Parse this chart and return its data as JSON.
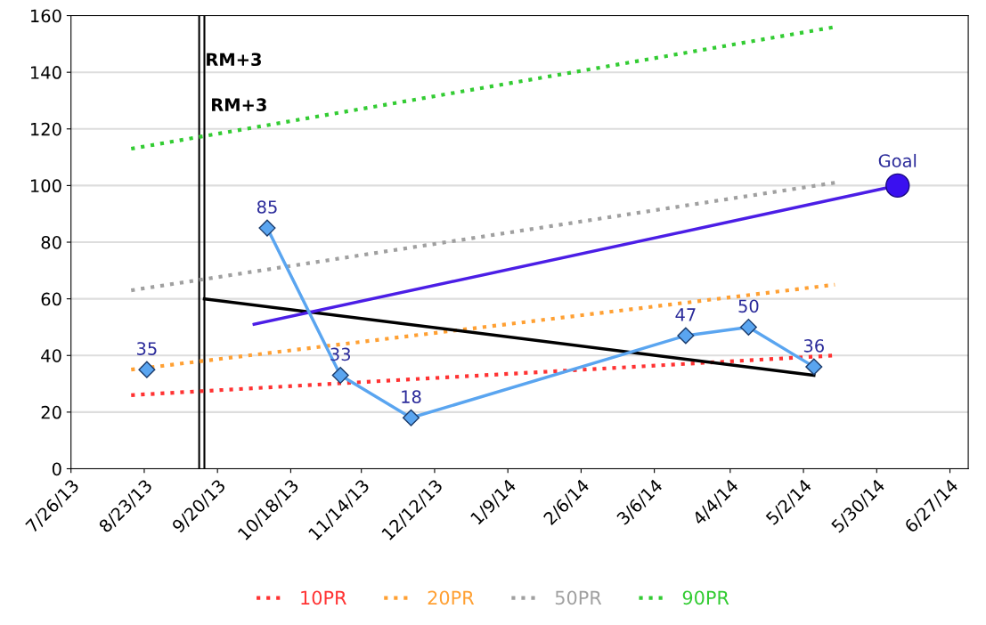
{
  "chart_data": {
    "type": "line",
    "x": [
      "2013-10-09",
      "2013-11-06",
      "2013-12-03",
      "2014-03-18",
      "2014-04-11",
      "2014-05-06"
    ],
    "series": [
      {
        "name": "10PR",
        "color": "#ff3333",
        "line_style": "dotted",
        "marker": "none",
        "x": [
          "2013-08-18",
          "2014-05-14"
        ],
        "values": [
          26,
          40
        ]
      },
      {
        "name": "20PR",
        "color": "#ffa033",
        "line_style": "dotted",
        "marker": "none",
        "x": [
          "2013-08-18",
          "2014-05-14"
        ],
        "values": [
          35,
          65
        ]
      },
      {
        "name": "50PR",
        "color": "#a0a0a0",
        "line_style": "dotted",
        "marker": "none",
        "x": [
          "2013-08-18",
          "2014-05-14"
        ],
        "values": [
          63,
          101
        ]
      },
      {
        "name": "90PR",
        "color": "#33cc33",
        "line_style": "dotted",
        "marker": "none",
        "x": [
          "2013-08-18",
          "2014-05-14"
        ],
        "values": [
          113,
          156
        ]
      },
      {
        "color": "#000000",
        "line_style": "solid",
        "marker": "none",
        "x": [
          "2013-09-15",
          "2014-05-06"
        ],
        "values": [
          60,
          33
        ]
      },
      {
        "color": "#4b1ee6",
        "line_style": "solid",
        "marker": "none",
        "x": [
          "2013-10-04",
          "2014-06-07"
        ],
        "values": [
          51,
          100
        ]
      },
      {
        "type": "scatter",
        "color": "#3a10f0",
        "marker": "circle",
        "x": [
          "2014-06-07"
        ],
        "values": [
          100
        ]
      },
      {
        "color": "#5aa5f0",
        "line_style": "solid",
        "marker": "diamond",
        "x": [
          "2013-08-24"
        ],
        "values": [
          35
        ],
        "value_labels": [
          "35"
        ]
      },
      {
        "color": "#5aa5f0",
        "line_style": "solid",
        "marker": "diamond",
        "values": [
          85,
          33,
          18,
          47,
          50,
          36
        ],
        "value_labels": [
          "85",
          "33",
          "18",
          "47",
          "50",
          "36"
        ]
      }
    ],
    "annotations": [
      {
        "text": "Goal",
        "x": "2014-06-07",
        "y": 100
      }
    ],
    "ref_lines": [
      {
        "axis": "x",
        "value": "2013-09-13",
        "label": "RM+3",
        "color": "#000000"
      },
      {
        "axis": "x",
        "value": "2013-09-15",
        "label": "RM+3",
        "color": "#000000"
      }
    ],
    "xlim": [
      "2013-07-26",
      "2014-07-04"
    ],
    "xticks": [
      {
        "value": "2013-07-26",
        "label": "7/26/13"
      },
      {
        "value": "2013-08-23",
        "label": "8/23/13"
      },
      {
        "value": "2013-09-20",
        "label": "9/20/13"
      },
      {
        "value": "2013-10-18",
        "label": "10/18/13"
      },
      {
        "value": "2013-11-14",
        "label": "11/14/13"
      },
      {
        "value": "2013-12-12",
        "label": "12/12/13"
      },
      {
        "value": "2014-01-09",
        "label": "1/9/14"
      },
      {
        "value": "2014-02-06",
        "label": "2/6/14"
      },
      {
        "value": "2014-03-06",
        "label": "3/6/14"
      },
      {
        "value": "2014-04-04",
        "label": "4/4/14"
      },
      {
        "value": "2014-05-02",
        "label": "5/2/14"
      },
      {
        "value": "2014-05-30",
        "label": "5/30/14"
      },
      {
        "value": "2014-06-27",
        "label": "6/27/14"
      }
    ],
    "ylim": [
      0,
      160
    ],
    "yticks": [
      0,
      20,
      40,
      60,
      80,
      100,
      120,
      140,
      160
    ],
    "grid": "y",
    "legend": "bottom"
  }
}
